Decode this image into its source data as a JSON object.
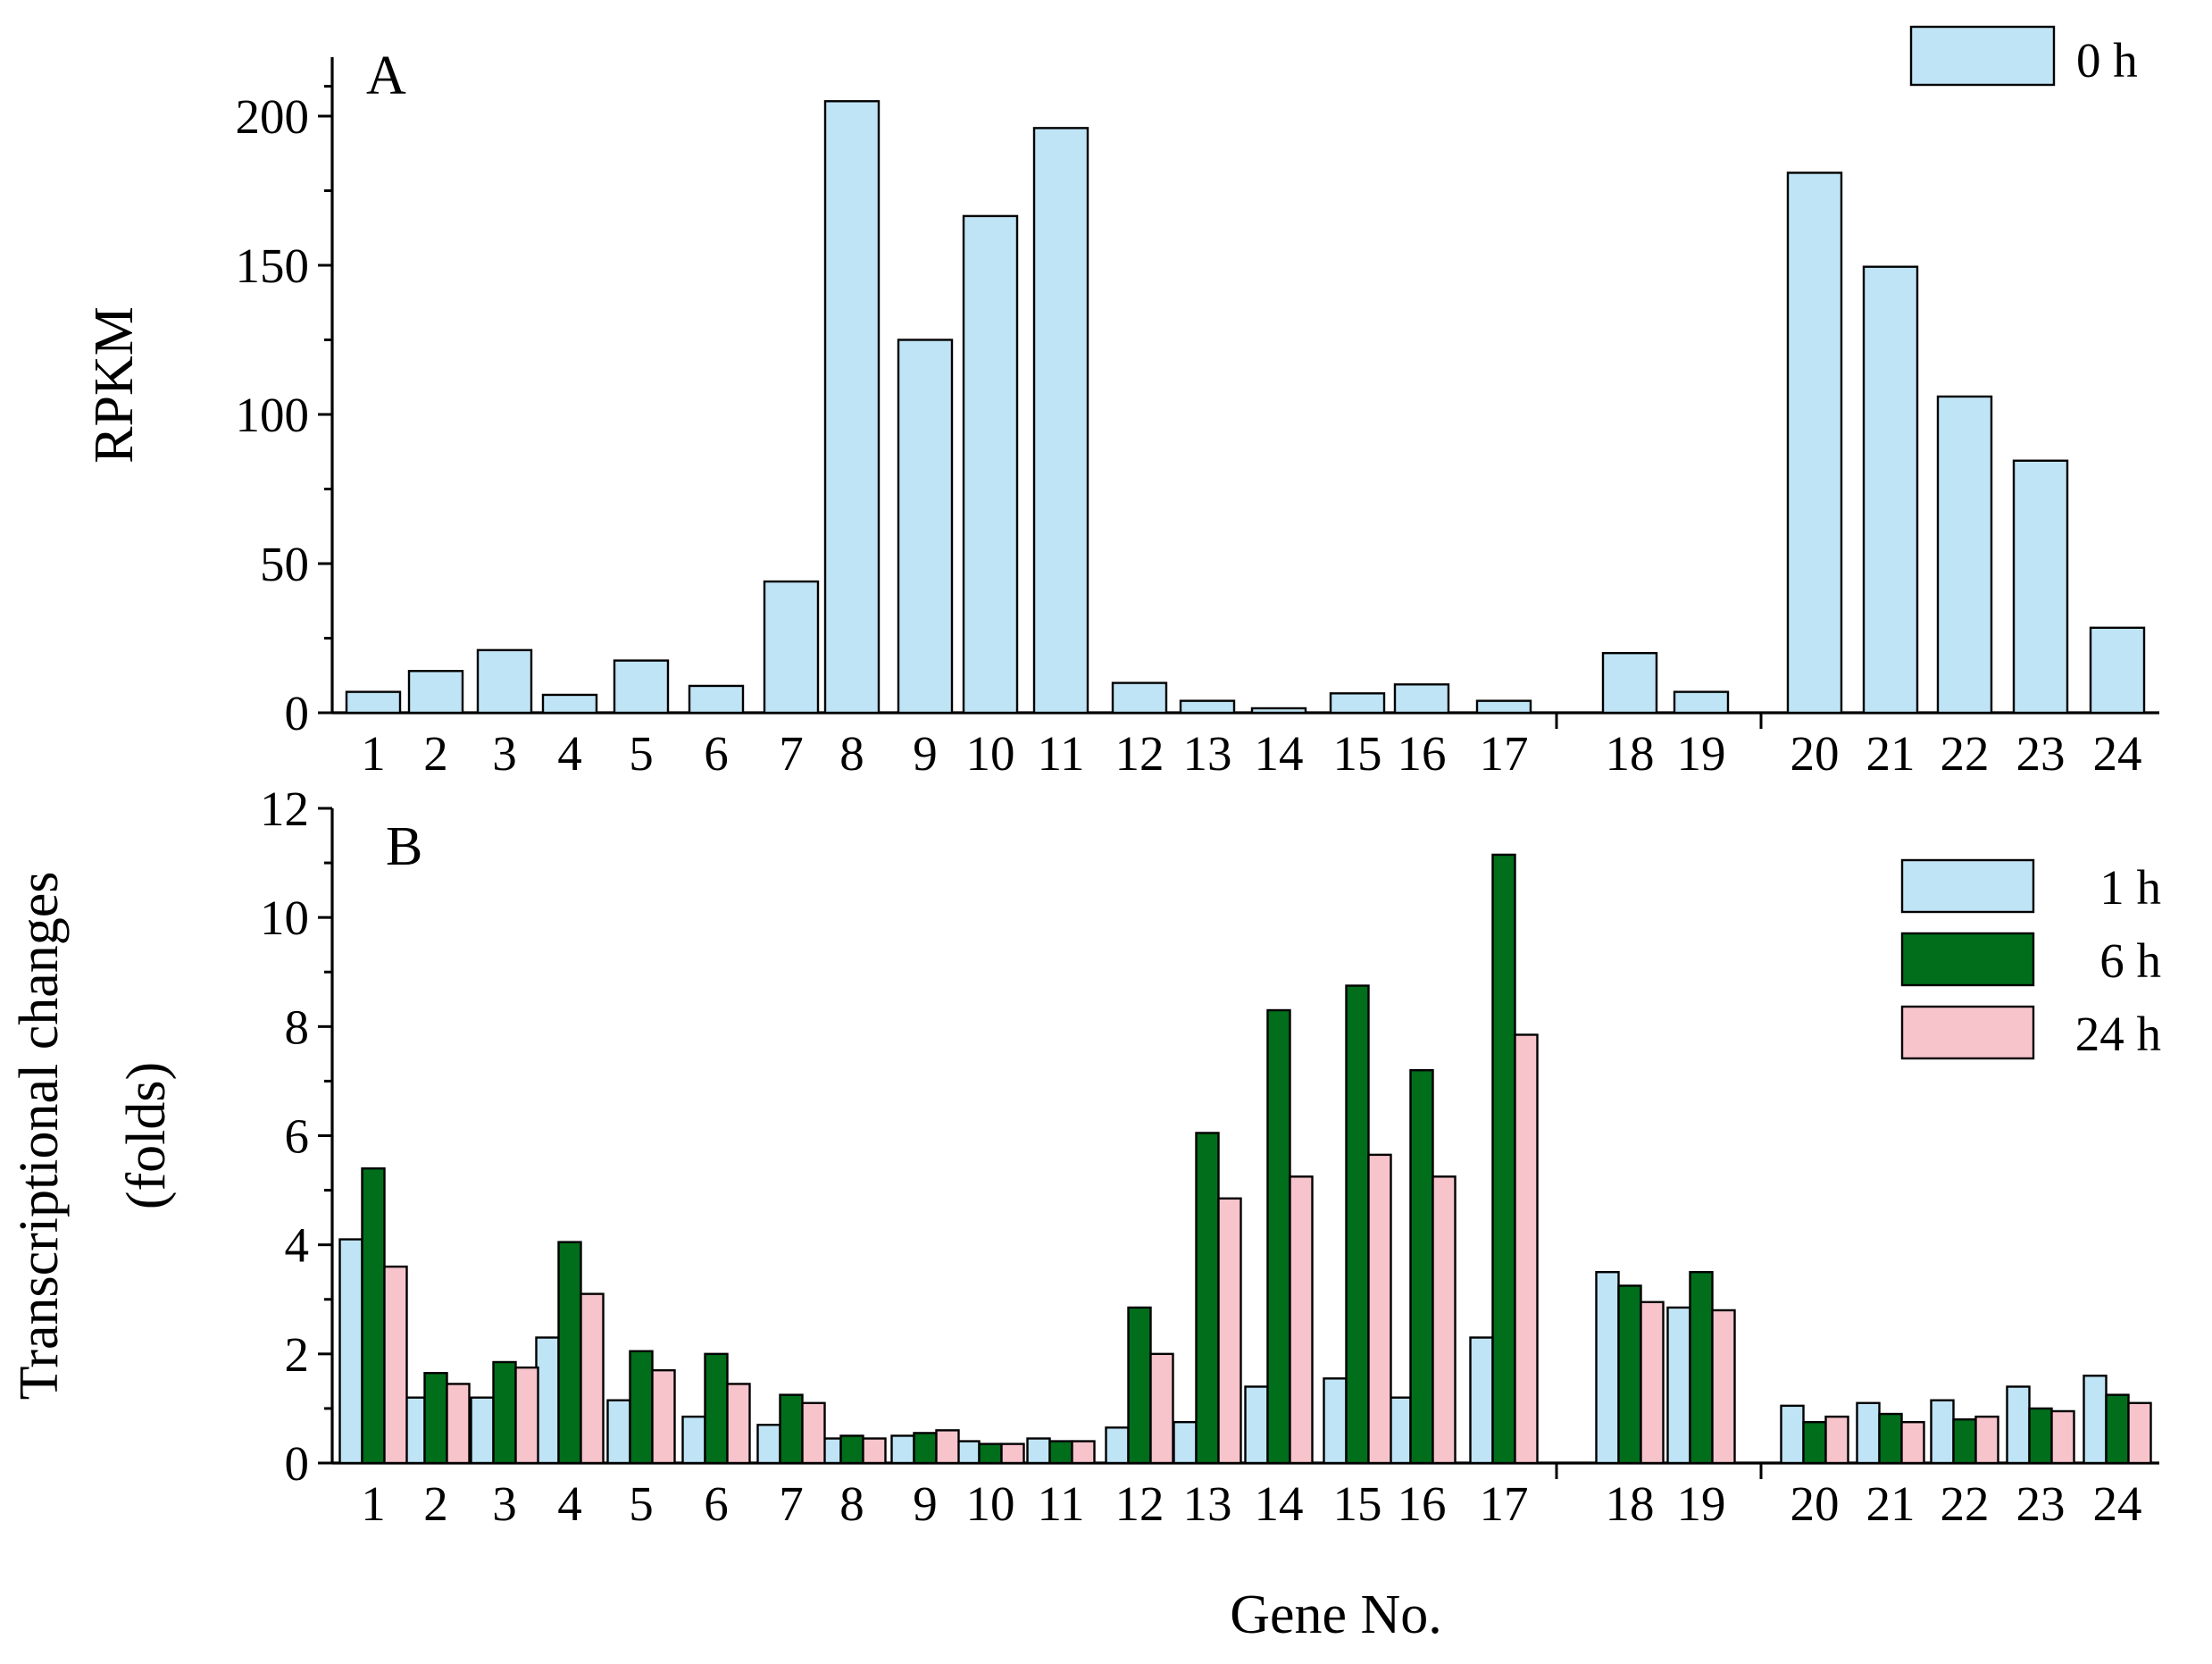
{
  "colors": {
    "h0": "#bfe4f6",
    "h1": "#bfe4f6",
    "h6": "#006e1a",
    "h24": "#f7c4cb"
  },
  "chart_data": [
    {
      "type": "bar",
      "panel": "A",
      "title": "",
      "xlabel": "",
      "ylabel": "RPKM",
      "ylim": [
        0,
        220
      ],
      "yticks": [
        0,
        50,
        100,
        150,
        200
      ],
      "grid": false,
      "legend_position": "top-right",
      "categories": [
        "1",
        "2",
        "3",
        "4",
        "5",
        "6",
        "7",
        "8",
        "9",
        "10",
        "11",
        "12",
        "13",
        "14",
        "15",
        "16",
        "17",
        "18",
        "19",
        "20",
        "21",
        "22",
        "23",
        "24"
      ],
      "series": [
        {
          "name": "0 h",
          "color_key": "h0",
          "values": [
            7,
            14,
            21,
            6,
            17.5,
            9,
            44,
            205,
            125,
            166.5,
            196,
            10,
            4,
            1.5,
            6.5,
            9.5,
            4,
            20,
            7,
            181,
            149.5,
            106,
            84.5,
            28.5
          ]
        }
      ]
    },
    {
      "type": "bar",
      "panel": "B",
      "title": "",
      "xlabel": "Gene No.",
      "ylabel_lines": [
        "Transcriptional changes",
        "(folds)"
      ],
      "ylim": [
        0,
        12
      ],
      "yticks": [
        0,
        2,
        4,
        6,
        8,
        10,
        12
      ],
      "grid": false,
      "legend_position": "top-right",
      "categories": [
        "1",
        "2",
        "3",
        "4",
        "5",
        "6",
        "7",
        "8",
        "9",
        "10",
        "11",
        "12",
        "13",
        "14",
        "15",
        "16",
        "17",
        "18",
        "19",
        "20",
        "21",
        "22",
        "23",
        "24"
      ],
      "series": [
        {
          "name": "1 h",
          "color_key": "h1",
          "values": [
            4.1,
            1.2,
            1.2,
            2.3,
            1.15,
            0.85,
            0.7,
            0.45,
            0.5,
            0.4,
            0.45,
            0.65,
            0.75,
            1.4,
            1.55,
            1.2,
            2.3,
            3.5,
            2.85,
            1.05,
            1.1,
            1.15,
            1.4,
            1.6
          ]
        },
        {
          "name": "6 h",
          "color_key": "h6",
          "values": [
            5.4,
            1.65,
            1.85,
            4.05,
            2.05,
            2.0,
            1.25,
            0.5,
            0.55,
            0.35,
            0.4,
            2.85,
            6.05,
            8.3,
            8.75,
            7.2,
            11.15,
            3.25,
            3.5,
            0.75,
            0.9,
            0.8,
            1.0,
            1.25
          ]
        },
        {
          "name": "24 h",
          "color_key": "h24",
          "values": [
            3.6,
            1.45,
            1.75,
            3.1,
            1.7,
            1.45,
            1.1,
            0.45,
            0.6,
            0.35,
            0.4,
            2.0,
            4.85,
            5.25,
            5.65,
            5.25,
            7.85,
            2.95,
            2.8,
            0.85,
            0.75,
            0.85,
            0.95,
            1.1
          ]
        }
      ]
    }
  ]
}
